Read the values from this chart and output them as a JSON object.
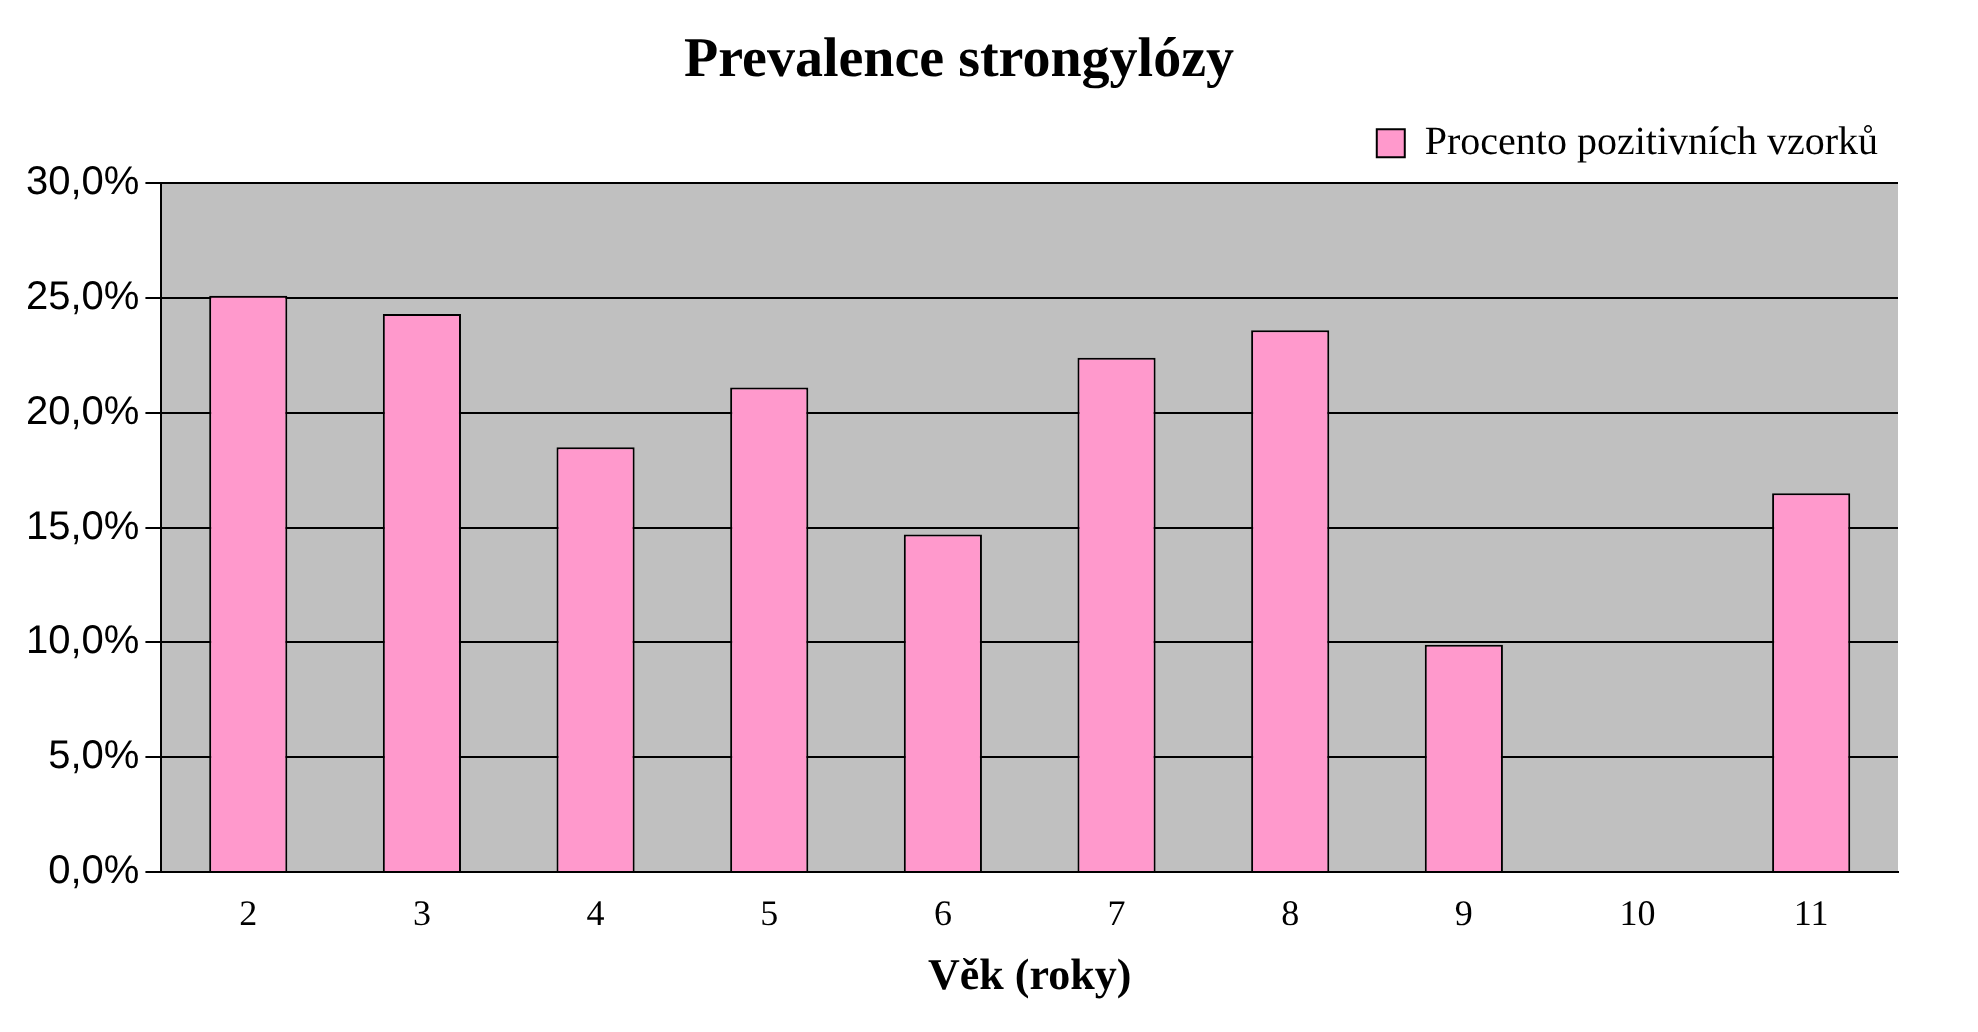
{
  "chart_data": {
    "type": "bar",
    "title": "Prevalence strongylózy",
    "xlabel": "Věk (roky)",
    "categories": [
      "2",
      "3",
      "4",
      "5",
      "6",
      "7",
      "8",
      "9",
      "10",
      "11"
    ],
    "series": [
      {
        "name": "Procento pozitivních vzorků",
        "color": "#ff99cc",
        "values": [
          25.1,
          24.3,
          18.5,
          21.1,
          14.7,
          22.4,
          23.6,
          9.9,
          0,
          16.5
        ]
      }
    ],
    "ylim": [
      0,
      30
    ],
    "yticks": [
      {
        "value": 0,
        "label": "0,0%"
      },
      {
        "value": 5,
        "label": "5,0%"
      },
      {
        "value": 10,
        "label": "10,0%"
      },
      {
        "value": 15,
        "label": "15,0%"
      },
      {
        "value": 20,
        "label": "20,0%"
      },
      {
        "value": 25,
        "label": "25,0%"
      },
      {
        "value": 30,
        "label": "30,0%"
      }
    ],
    "grid": "y",
    "legend": "top right"
  }
}
